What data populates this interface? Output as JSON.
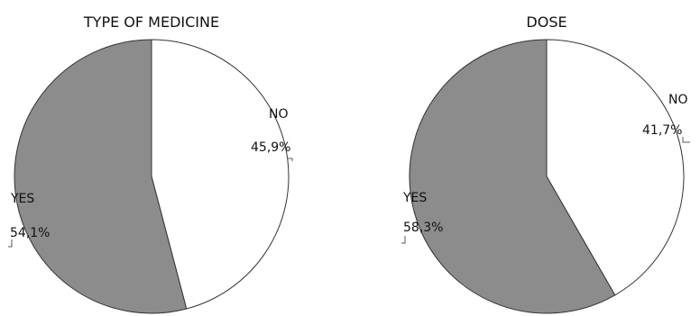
{
  "chart_data": [
    {
      "type": "pie",
      "title": "TYPE OF MEDICINE",
      "slices": [
        {
          "label": "NO",
          "value": 45.9,
          "value_text": "45,9%",
          "color": "#ffffff"
        },
        {
          "label": "YES",
          "value": 54.1,
          "value_text": "54,1%",
          "color": "#8c8c8c"
        }
      ]
    },
    {
      "type": "pie",
      "title": "DOSE",
      "slices": [
        {
          "label": "NO",
          "value": 41.7,
          "value_text": "41,7%",
          "color": "#ffffff"
        },
        {
          "label": "YES",
          "value": 58.3,
          "value_text": "58,3%",
          "color": "#8c8c8c"
        }
      ]
    }
  ]
}
